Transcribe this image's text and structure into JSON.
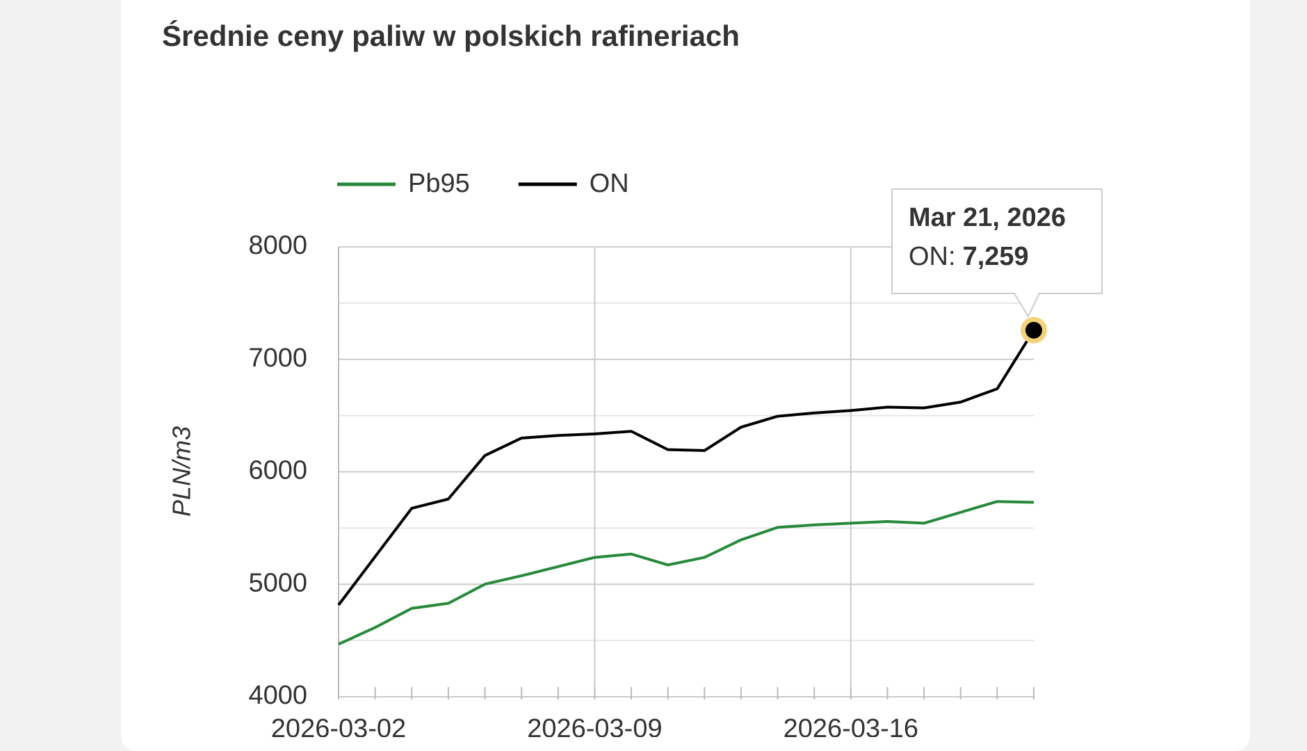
{
  "chart_data": {
    "type": "line",
    "title": "Średnie ceny paliw w polskich rafineriach",
    "y_label": "PLN/m3",
    "x": [
      "2026-03-02",
      "2026-03-03",
      "2026-03-04",
      "2026-03-05",
      "2026-03-06",
      "2026-03-07",
      "2026-03-08",
      "2026-03-09",
      "2026-03-10",
      "2026-03-11",
      "2026-03-12",
      "2026-03-13",
      "2026-03-14",
      "2026-03-15",
      "2026-03-16",
      "2026-03-17",
      "2026-03-18",
      "2026-03-19",
      "2026-03-20",
      "2026-03-21"
    ],
    "xticks": [
      "2026-03-02",
      "2026-03-09",
      "2026-03-16"
    ],
    "series": [
      {
        "name": "Pb95",
        "color": "#27893a",
        "values": [
          4467,
          4616,
          4786,
          4831,
          5001,
          5076,
          5157,
          5239,
          5269,
          5172,
          5239,
          5395,
          5506,
          5528,
          5543,
          5558,
          5543,
          5640,
          5736,
          5729
        ]
      },
      {
        "name": "ON",
        "color": "#000000",
        "values": [
          4816,
          5246,
          5676,
          5758,
          6145,
          6300,
          6323,
          6337,
          6360,
          6197,
          6189,
          6397,
          6494,
          6523,
          6545,
          6575,
          6568,
          6620,
          6738,
          7259
        ]
      }
    ],
    "ylim": [
      4000,
      8000
    ],
    "yticks": [
      4000,
      5000,
      6000,
      7000,
      8000
    ],
    "minor_yticks": [
      4500,
      5500,
      6500,
      7500
    ],
    "grid": true,
    "legend": "top",
    "tooltip": {
      "date": "Mar 21, 2026",
      "label": "ON:",
      "value": "7,259"
    }
  }
}
